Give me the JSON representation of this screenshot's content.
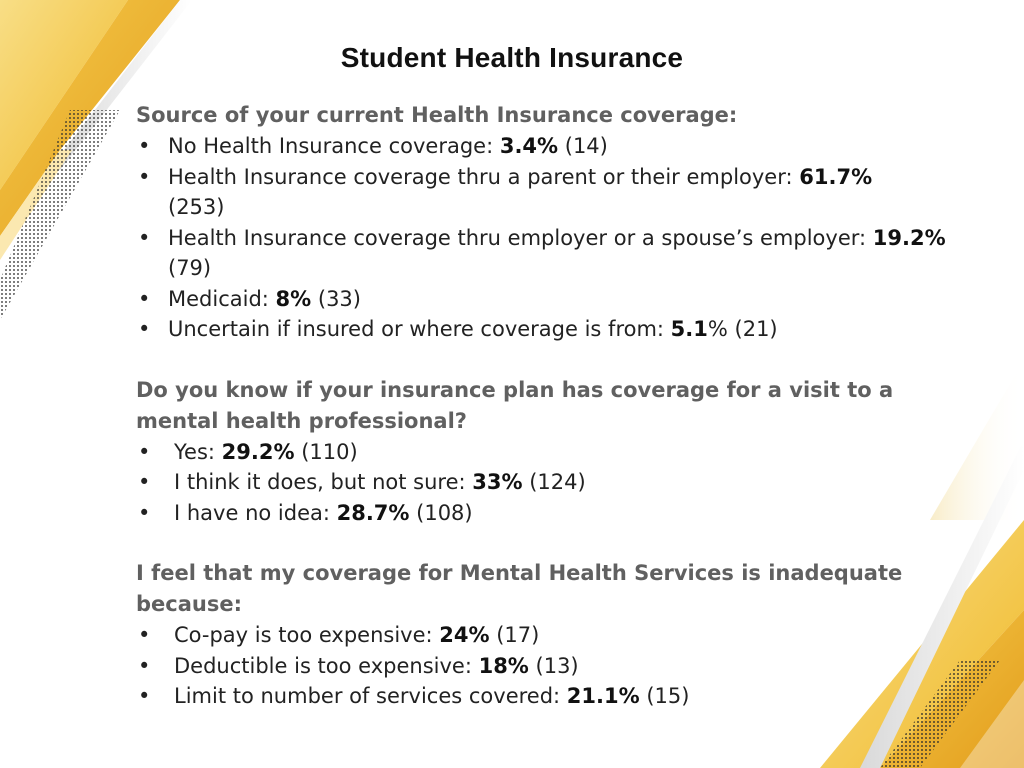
{
  "title": "Student Health Insurance",
  "sections": [
    {
      "heading": "Source of your current Health Insurance coverage:",
      "items": [
        {
          "label": "No Health Insurance coverage: ",
          "pct": "3.4%",
          "pct_suffix": "",
          "count": " (14)"
        },
        {
          "label": "Health Insurance coverage thru a parent or their employer: ",
          "pct": "61.7%",
          "pct_suffix": "",
          "count": " (253)"
        },
        {
          "label": "Health Insurance coverage thru employer or a spouse’s employer: ",
          "pct": "19.2%",
          "pct_suffix": "",
          "count": " (79)"
        },
        {
          "label": "Medicaid: ",
          "pct": "8%",
          "pct_suffix": "",
          "count": " (33)"
        },
        {
          "label": "Uncertain if insured or where coverage is from: ",
          "pct": "5.1",
          "pct_suffix": "%",
          "count": " (21)"
        }
      ]
    },
    {
      "heading": "Do you know if your insurance plan has coverage for a visit to a mental health professional?",
      "items": [
        {
          "label": "Yes: ",
          "pct": "29.2%",
          "pct_suffix": "",
          "count": " (110)"
        },
        {
          "label": "I think it does, but not sure: ",
          "pct": "33%",
          "pct_suffix": "",
          "count": " (124)"
        },
        {
          "label": "I have no idea: ",
          "pct": "28.7%",
          "pct_suffix": "",
          "count": " (108)"
        }
      ]
    },
    {
      "heading": "I feel that my coverage for Mental Health Services is inadequate because:",
      "items": [
        {
          "label": "Co-pay is too expensive: ",
          "pct": "24%",
          "pct_suffix": "",
          "count": " (17)"
        },
        {
          "label": "Deductible is too expensive: ",
          "pct": "18%",
          "pct_suffix": "",
          "count": " (13)"
        },
        {
          "label": "Limit to number of services covered: ",
          "pct": "21.1%",
          "pct_suffix": "",
          "count": " (15)"
        }
      ]
    }
  ],
  "colors": {
    "gold_light": "#f6d46a",
    "gold": "#f0b92a",
    "gold_dark": "#e39d1c",
    "heading_gray": "#606060",
    "dots": "#2a2a2a"
  }
}
